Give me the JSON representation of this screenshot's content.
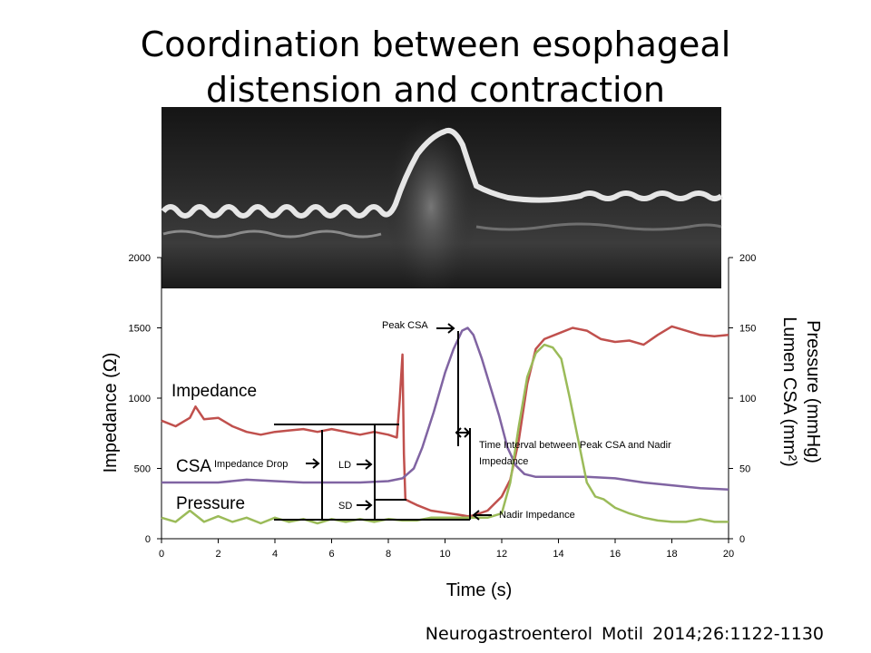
{
  "slide": {
    "title_line1": "Coordination between esophageal",
    "title_line2": "distension and contraction",
    "citation": "Neurogastroenterol  Motil  2014;26:1122-1130"
  },
  "chart_data": {
    "type": "line",
    "xlabel": "Time (s)",
    "ylabel_left": "Impedance (Ω)",
    "ylabel_right_line1": "Pressure (mmHg)",
    "ylabel_right_line2": "Lumen CSA (mm²)",
    "xlim": [
      0,
      20
    ],
    "ylim_left": [
      0,
      2000
    ],
    "ylim_right": [
      0,
      200
    ],
    "x_ticks": [
      0,
      2,
      4,
      6,
      8,
      10,
      12,
      14,
      16,
      18,
      20
    ],
    "y_ticks_left": [
      0,
      500,
      1000,
      1500,
      2000
    ],
    "y_ticks_right": [
      0,
      50,
      100,
      150,
      200
    ],
    "grid": false,
    "series": [
      {
        "name": "Impedance",
        "axis": "left",
        "color": "#c0504d",
        "points": [
          [
            0,
            840
          ],
          [
            0.5,
            800
          ],
          [
            1.0,
            860
          ],
          [
            1.2,
            940
          ],
          [
            1.5,
            850
          ],
          [
            2.0,
            860
          ],
          [
            2.5,
            800
          ],
          [
            3.0,
            760
          ],
          [
            3.5,
            740
          ],
          [
            4.0,
            760
          ],
          [
            4.5,
            770
          ],
          [
            5.0,
            780
          ],
          [
            5.5,
            760
          ],
          [
            6.0,
            780
          ],
          [
            6.5,
            760
          ],
          [
            7.0,
            740
          ],
          [
            7.5,
            760
          ],
          [
            8.0,
            740
          ],
          [
            8.3,
            720
          ],
          [
            8.4,
            980
          ],
          [
            8.5,
            1310
          ],
          [
            8.55,
            600
          ],
          [
            8.6,
            280
          ],
          [
            8.8,
            260
          ],
          [
            9.0,
            240
          ],
          [
            9.5,
            200
          ],
          [
            10.0,
            185
          ],
          [
            10.5,
            170
          ],
          [
            10.8,
            160
          ],
          [
            11.0,
            165
          ],
          [
            11.5,
            200
          ],
          [
            12.0,
            300
          ],
          [
            12.3,
            420
          ],
          [
            12.6,
            700
          ],
          [
            12.9,
            1100
          ],
          [
            13.2,
            1350
          ],
          [
            13.5,
            1420
          ],
          [
            14.0,
            1460
          ],
          [
            14.5,
            1500
          ],
          [
            15.0,
            1480
          ],
          [
            15.5,
            1420
          ],
          [
            16.0,
            1400
          ],
          [
            16.5,
            1410
          ],
          [
            17.0,
            1380
          ],
          [
            17.5,
            1450
          ],
          [
            18.0,
            1510
          ],
          [
            18.5,
            1480
          ],
          [
            19.0,
            1450
          ],
          [
            19.5,
            1440
          ],
          [
            20.0,
            1450
          ]
        ]
      },
      {
        "name": "CSA",
        "axis": "right",
        "color": "#8064a2",
        "points": [
          [
            0,
            40
          ],
          [
            2,
            40
          ],
          [
            3,
            42
          ],
          [
            4,
            41
          ],
          [
            5,
            40
          ],
          [
            6,
            40
          ],
          [
            7,
            40
          ],
          [
            8,
            41
          ],
          [
            8.5,
            43
          ],
          [
            8.9,
            50
          ],
          [
            9.2,
            65
          ],
          [
            9.6,
            90
          ],
          [
            10.0,
            118
          ],
          [
            10.3,
            135
          ],
          [
            10.6,
            148
          ],
          [
            10.8,
            150
          ],
          [
            11.0,
            145
          ],
          [
            11.3,
            128
          ],
          [
            11.6,
            108
          ],
          [
            11.9,
            88
          ],
          [
            12.2,
            65
          ],
          [
            12.5,
            52
          ],
          [
            12.8,
            46
          ],
          [
            13.2,
            44
          ],
          [
            14,
            44
          ],
          [
            15,
            44
          ],
          [
            16,
            43
          ],
          [
            17,
            40
          ],
          [
            18,
            38
          ],
          [
            19,
            36
          ],
          [
            20,
            35
          ]
        ]
      },
      {
        "name": "Pressure",
        "axis": "right",
        "color": "#9bbb59",
        "points": [
          [
            0,
            15
          ],
          [
            0.5,
            12
          ],
          [
            1.0,
            20
          ],
          [
            1.5,
            12
          ],
          [
            2.0,
            16
          ],
          [
            2.5,
            12
          ],
          [
            3.0,
            15
          ],
          [
            3.5,
            11
          ],
          [
            4.0,
            15
          ],
          [
            4.5,
            12
          ],
          [
            5.0,
            14
          ],
          [
            5.5,
            11
          ],
          [
            6.0,
            14
          ],
          [
            6.5,
            12
          ],
          [
            7.0,
            14
          ],
          [
            7.5,
            12
          ],
          [
            8.0,
            14
          ],
          [
            8.5,
            13
          ],
          [
            9.0,
            13
          ],
          [
            9.5,
            15
          ],
          [
            10.0,
            15
          ],
          [
            10.5,
            15
          ],
          [
            11.0,
            15
          ],
          [
            11.5,
            15
          ],
          [
            12.0,
            18
          ],
          [
            12.3,
            40
          ],
          [
            12.6,
            80
          ],
          [
            12.9,
            115
          ],
          [
            13.2,
            132
          ],
          [
            13.5,
            138
          ],
          [
            13.8,
            136
          ],
          [
            14.1,
            128
          ],
          [
            14.4,
            100
          ],
          [
            14.7,
            70
          ],
          [
            15.0,
            40
          ],
          [
            15.3,
            30
          ],
          [
            15.6,
            28
          ],
          [
            16.0,
            22
          ],
          [
            16.5,
            18
          ],
          [
            17.0,
            15
          ],
          [
            17.5,
            13
          ],
          [
            18.0,
            12
          ],
          [
            18.5,
            12
          ],
          [
            19.0,
            14
          ],
          [
            19.5,
            12
          ],
          [
            20.0,
            12
          ]
        ]
      }
    ],
    "annotations": {
      "series_label_impedance": "Impedance",
      "series_label_csa": "CSA",
      "series_label_pressure": "Pressure",
      "peak_csa": "Peak CSA",
      "impedance_drop": "Impedance Drop",
      "ld": "LD",
      "sd": "SD",
      "interval_line1": "Time Interval between Peak CSA and Nadir",
      "interval_line2": "Impedance",
      "nadir_impedance": "Nadir Impedance"
    }
  }
}
